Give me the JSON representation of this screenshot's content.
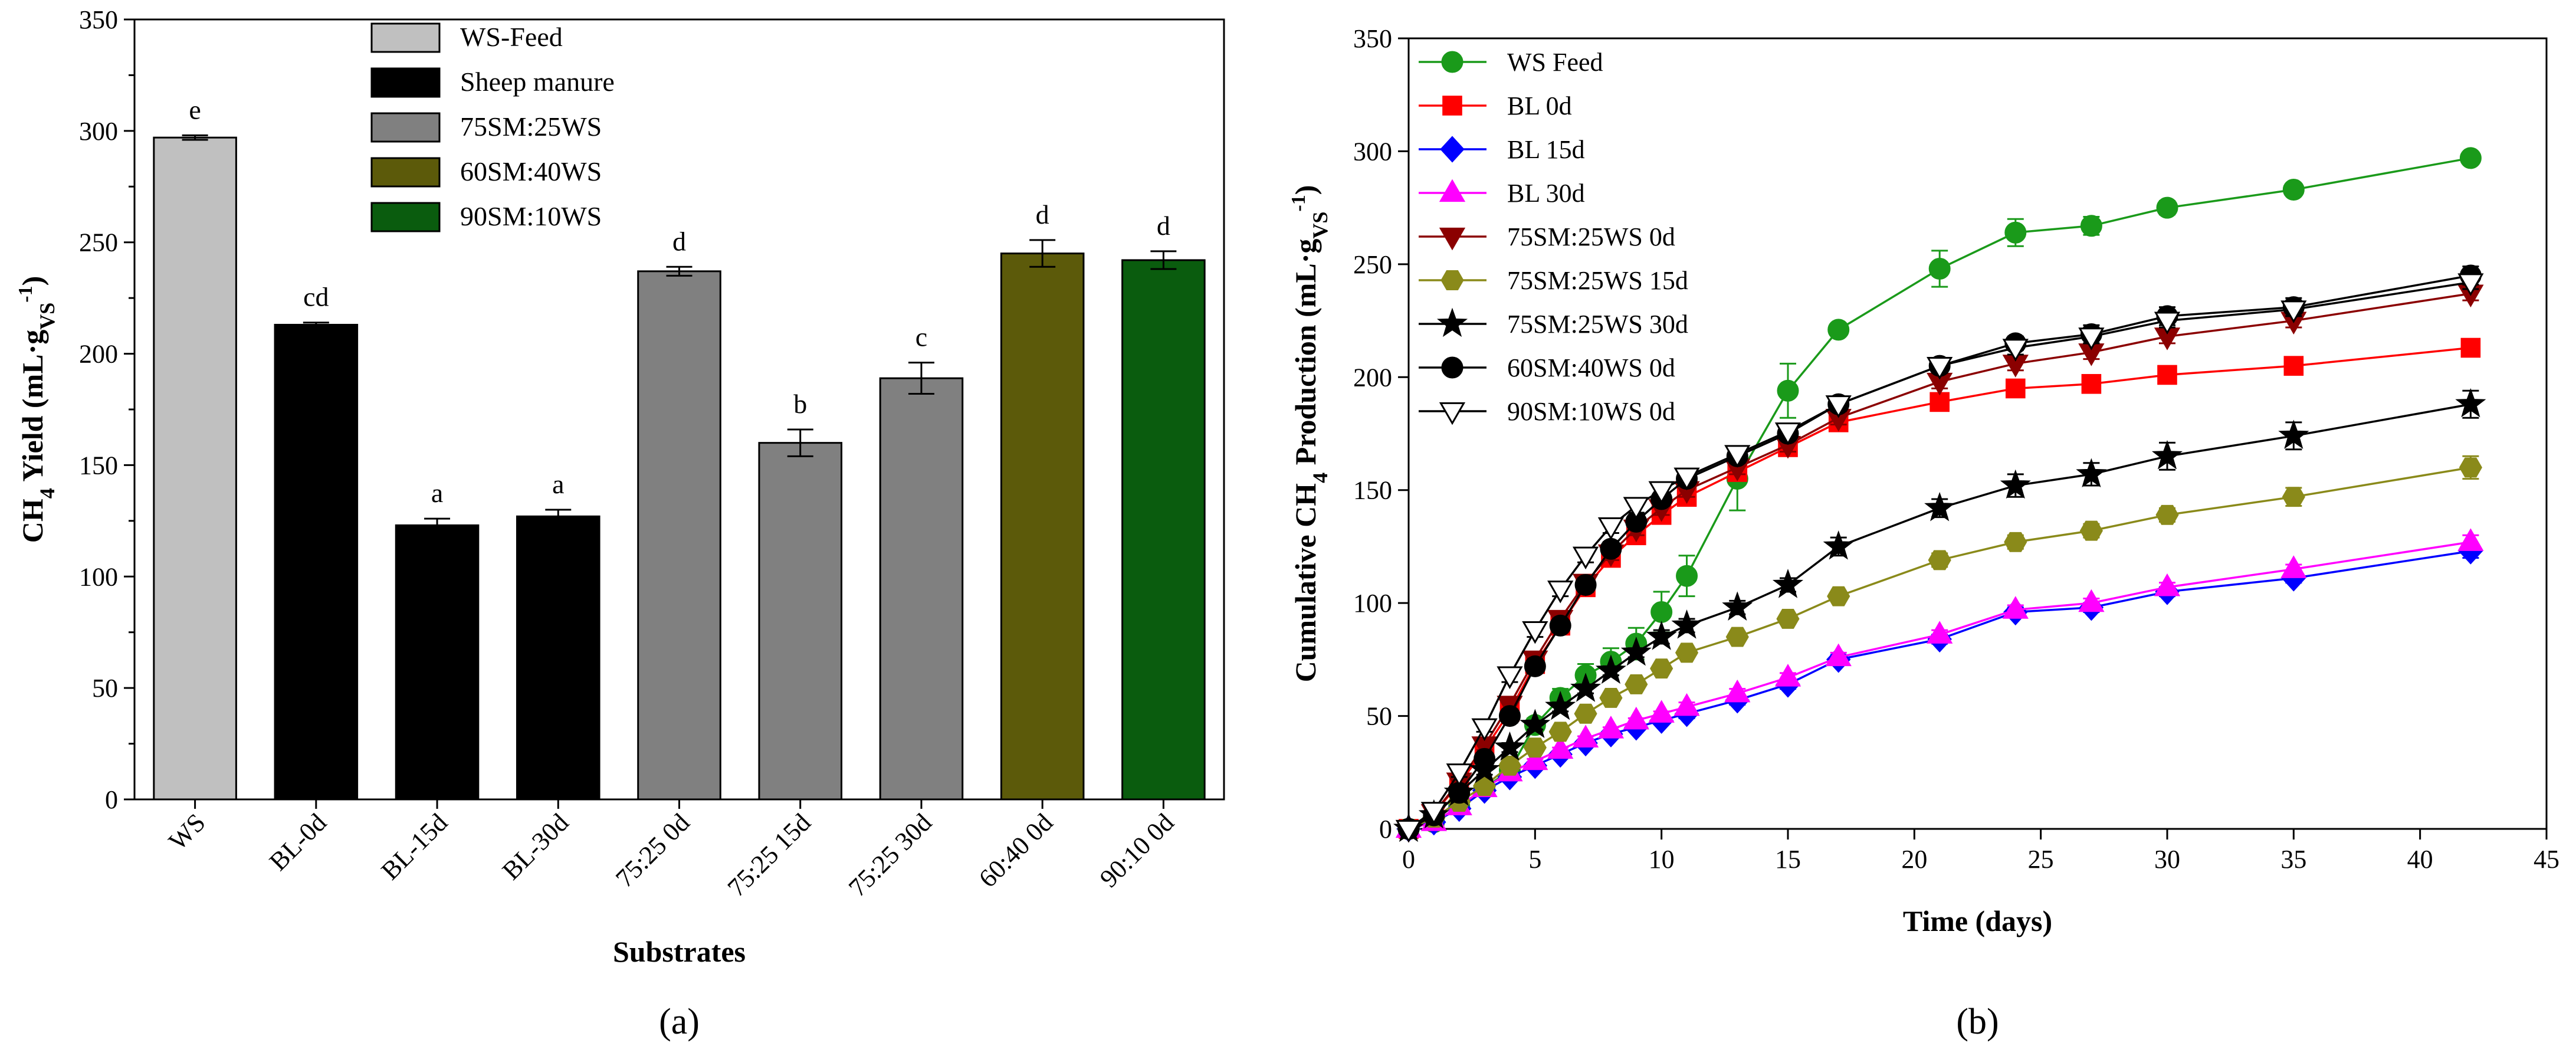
{
  "chart_data": [
    {
      "type": "bar",
      "panel_label": "(a)",
      "xlabel": "Substrates",
      "ylabel": "CH4 Yield (mL·gVS-1)",
      "ylabel_parts": {
        "main": "CH",
        "sub": "4",
        "rest": " Yield (mL·g",
        "sub2": "VS",
        "sup": "-1",
        "close": ")"
      },
      "ylim": [
        0,
        350
      ],
      "yticks": [
        0,
        50,
        100,
        150,
        200,
        250,
        300,
        350
      ],
      "categories": [
        "WS",
        "BL-0d",
        "BL-15d",
        "BL-30d",
        "75:25 0d",
        "75:25 15d",
        "75:25 30d",
        "60:40 0d",
        "90:10 0d"
      ],
      "values": [
        297,
        213,
        123,
        127,
        237,
        160,
        189,
        245,
        242
      ],
      "errors": [
        1,
        1,
        3,
        3,
        2,
        6,
        7,
        6,
        4
      ],
      "labels": [
        "e",
        "cd",
        "a",
        "a",
        "d",
        "b",
        "c",
        "d",
        "d"
      ],
      "bar_groups": [
        0,
        1,
        1,
        1,
        2,
        2,
        2,
        3,
        4
      ],
      "legend": [
        {
          "name": "WS-Feed",
          "color": "#c0c0c0"
        },
        {
          "name": "Sheep manure",
          "color": "#000000"
        },
        {
          "name": "75SM:25WS",
          "color": "#808080"
        },
        {
          "name": "60SM:40WS",
          "color": "#5c5a0a"
        },
        {
          "name": "90SM:10WS",
          "color": "#0a5c0e"
        }
      ],
      "legend_position": "top-right"
    },
    {
      "type": "line",
      "panel_label": "(b)",
      "xlabel": "Time (days)",
      "ylabel": "Cumulative CH4 Production (mL·gVS-1)",
      "ylabel_parts": {
        "main": "Cumulative CH",
        "sub": "4",
        "rest": " Production (mL·g",
        "sub2": "VS",
        "sup": "-1",
        "close": ")"
      },
      "xlim": [
        0,
        45
      ],
      "ylim": [
        0,
        350
      ],
      "xticks": [
        0,
        5,
        10,
        15,
        20,
        25,
        30,
        35,
        40,
        45
      ],
      "yticks": [
        0,
        50,
        100,
        150,
        200,
        250,
        300,
        350
      ],
      "x": [
        0,
        1,
        2,
        3,
        4,
        5,
        6,
        7,
        8,
        9,
        10,
        11,
        13,
        15,
        17,
        21,
        24,
        27,
        30,
        35,
        42
      ],
      "legend_position": "top-left",
      "series": [
        {
          "name": "WS Feed",
          "color": "#1a9a1a",
          "marker": "circle",
          "fill": "filled",
          "values": [
            0,
            3,
            10,
            18,
            26,
            46,
            58,
            68,
            74,
            82,
            96,
            112,
            155,
            194,
            221,
            248,
            264,
            267,
            275,
            283,
            297
          ],
          "errors": [
            0,
            1,
            1,
            2,
            2,
            3,
            4,
            5,
            6,
            7,
            9,
            9,
            14,
            12,
            2,
            8,
            6,
            4,
            3,
            2,
            2
          ]
        },
        {
          "name": "BL 0d",
          "color": "#ff0000",
          "marker": "square",
          "fill": "filled",
          "values": [
            0,
            7,
            20,
            35,
            52,
            73,
            90,
            107,
            120,
            130,
            139,
            147,
            158,
            169,
            180,
            189,
            195,
            197,
            201,
            205,
            213
          ],
          "errors": [
            0,
            1,
            2,
            2,
            3,
            3,
            3,
            3,
            3,
            3,
            3,
            3,
            3,
            3,
            3,
            3,
            3,
            3,
            3,
            3,
            3
          ]
        },
        {
          "name": "BL 15d",
          "color": "#0000ff",
          "marker": "diamond",
          "fill": "filled",
          "values": [
            0,
            3,
            9,
            17,
            23,
            28,
            33,
            38,
            42,
            45,
            48,
            51,
            57,
            64,
            75,
            84,
            96,
            98,
            105,
            111,
            123
          ],
          "errors": [
            0,
            1,
            1,
            1,
            1,
            1,
            1,
            1,
            1,
            1,
            1,
            2,
            2,
            2,
            2,
            2,
            2,
            2,
            2,
            2,
            3
          ]
        },
        {
          "name": "BL 30d",
          "color": "#ff00ff",
          "marker": "triangle-up",
          "fill": "filled",
          "values": [
            0,
            3,
            10,
            18,
            25,
            30,
            35,
            40,
            44,
            48,
            51,
            54,
            60,
            67,
            76,
            86,
            97,
            100,
            107,
            115,
            127
          ],
          "errors": [
            0,
            1,
            1,
            1,
            1,
            1,
            1,
            1,
            1,
            1,
            1,
            2,
            2,
            2,
            2,
            2,
            2,
            2,
            2,
            2,
            3
          ]
        },
        {
          "name": "75SM:25WS 0d",
          "color": "#8b0000",
          "marker": "triangle-down",
          "fill": "filled",
          "values": [
            0,
            7,
            21,
            37,
            55,
            75,
            93,
            109,
            122,
            133,
            142,
            150,
            160,
            170,
            182,
            198,
            206,
            211,
            218,
            225,
            237
          ],
          "errors": [
            0,
            1,
            2,
            2,
            3,
            3,
            3,
            3,
            3,
            3,
            3,
            3,
            3,
            3,
            3,
            3,
            3,
            3,
            3,
            3,
            3
          ]
        },
        {
          "name": "75SM:25WS 15d",
          "color": "#8a8a1a",
          "marker": "hexagon",
          "fill": "filled",
          "values": [
            0,
            5,
            12,
            19,
            28,
            36,
            43,
            51,
            58,
            64,
            71,
            78,
            85,
            93,
            103,
            119,
            127,
            132,
            139,
            147,
            160
          ],
          "errors": [
            0,
            1,
            1,
            1,
            1,
            2,
            2,
            2,
            2,
            2,
            2,
            2,
            2,
            2,
            2,
            3,
            3,
            3,
            3,
            4,
            5
          ]
        },
        {
          "name": "75SM:25WS 30d",
          "color": "#000000",
          "marker": "star",
          "fill": "filled",
          "values": [
            0,
            6,
            16,
            26,
            36,
            46,
            54,
            62,
            70,
            78,
            85,
            90,
            98,
            108,
            125,
            142,
            152,
            157,
            165,
            174,
            188
          ],
          "errors": [
            0,
            1,
            1,
            2,
            2,
            2,
            2,
            2,
            2,
            2,
            3,
            3,
            3,
            3,
            4,
            4,
            5,
            5,
            6,
            6,
            6
          ]
        },
        {
          "name": "60SM:40WS 0d",
          "color": "#000000",
          "marker": "circle",
          "fill": "filled",
          "values": [
            0,
            6,
            16,
            31,
            50,
            72,
            90,
            108,
            124,
            136,
            146,
            155,
            165,
            175,
            188,
            205,
            215,
            219,
            227,
            231,
            245
          ],
          "errors": [
            0,
            1,
            2,
            2,
            3,
            3,
            3,
            3,
            3,
            3,
            3,
            3,
            3,
            3,
            3,
            3,
            3,
            4,
            4,
            4,
            4
          ]
        },
        {
          "name": "90SM:10WS 0d",
          "color": "#000000",
          "marker": "triangle-down",
          "fill": "open",
          "values": [
            0,
            8,
            25,
            45,
            68,
            88,
            106,
            121,
            134,
            143,
            150,
            156,
            166,
            176,
            188,
            205,
            213,
            218,
            225,
            230,
            242
          ],
          "errors": [
            0,
            1,
            2,
            2,
            3,
            3,
            3,
            3,
            3,
            3,
            3,
            3,
            3,
            3,
            3,
            3,
            3,
            3,
            3,
            3,
            3
          ]
        }
      ]
    }
  ]
}
